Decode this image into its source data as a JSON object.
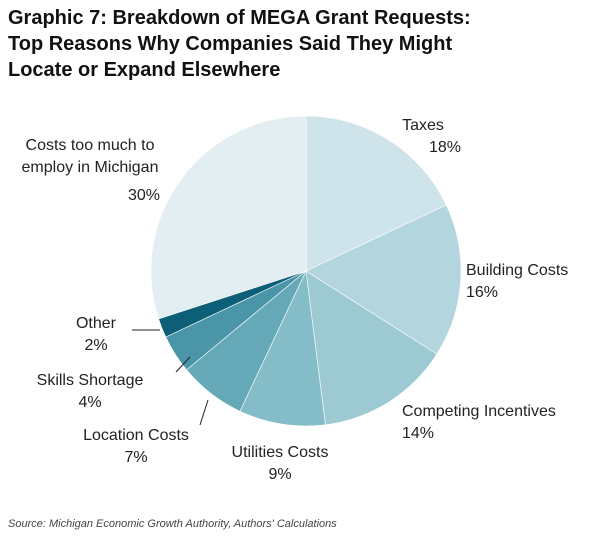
{
  "chart_data": {
    "type": "pie",
    "title": "Graphic 7: Breakdown of MEGA Grant Requests:\nTop Reasons Why Companies Said They Might\nLocate or Expand Elsewhere",
    "slices": [
      {
        "label": "Taxes",
        "value": 18,
        "display": "18%",
        "color": "#cfe3ea"
      },
      {
        "label": "Building Costs",
        "value": 16,
        "display": "16%",
        "color": "#b3d5dd"
      },
      {
        "label": "Competing Incentives",
        "value": 14,
        "display": "14%",
        "color": "#9cc9d2"
      },
      {
        "label": "Utilities Costs",
        "value": 9,
        "display": "9%",
        "color": "#84bcc8"
      },
      {
        "label": "Location Costs",
        "value": 7,
        "display": "7%",
        "color": "#65a8b7"
      },
      {
        "label": "Skills Shortage",
        "value": 4,
        "display": "4%",
        "color": "#4a95a7"
      },
      {
        "label": "Other",
        "value": 2,
        "display": "2%",
        "color": "#0d5f78"
      },
      {
        "label": "Costs too much to employ in Michigan",
        "value": 30,
        "display": "30%",
        "color": "#e3eef2"
      }
    ],
    "start": "top",
    "direction": "clockwise"
  },
  "source": "Source: Michigan Economic Growth Authority, Authors' Calculations"
}
